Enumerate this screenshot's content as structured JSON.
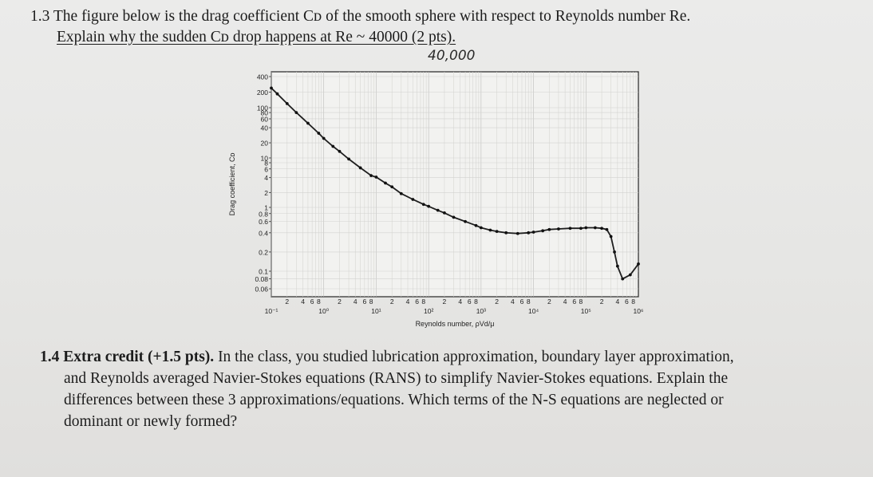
{
  "q13": {
    "line1": "1.3 The figure below is the drag coefficient Cᴅ of the smooth sphere with respect to Reynolds number Re.",
    "line2": "Explain why the sudden Cᴅ drop happens at Re ~ 40000 (2 pts).",
    "handwritten_note": "40,000"
  },
  "q14": {
    "line1": "1.4 Extra credit (+1.5 pts). In the class, you studied lubrication approximation, boundary layer approximation,",
    "line2": "and Reynolds averaged Navier-Stokes equations (RANS) to simplify Navier-Stokes equations. Explain the",
    "line3": "differences between these 3 approximations/equations. Which terms of the N-S equations are neglected or",
    "line4": "dominant or newly formed?"
  },
  "chart_data": {
    "type": "scatter",
    "xlabel": "Reynolds number, ρVd/μ",
    "ylabel": "Drag coefficient, Cᴅ",
    "x_scale": "log",
    "y_scale": "log",
    "xlim": [
      0.1,
      1000000
    ],
    "x_decade_labels": [
      "10⁻¹",
      "10⁰",
      "10¹",
      "10²",
      "10³",
      "10⁴",
      "10⁵",
      "10⁶"
    ],
    "x_minor_labels": [
      "2",
      "4",
      "6",
      "8"
    ],
    "y_tick_labels": [
      "400",
      "200",
      "100",
      "80",
      "60",
      "40",
      "20",
      "10",
      "8",
      "6",
      "4",
      "2",
      "1",
      "0.8",
      "0.6",
      "0.4",
      "0.2",
      "0.1",
      "0.08",
      "0.06"
    ],
    "grid": true,
    "series": [
      {
        "x": [
          0.1,
          0.13,
          0.2,
          0.3,
          0.5,
          0.8,
          1,
          1.5,
          2,
          3,
          5,
          8,
          10,
          15,
          20,
          30,
          50,
          80,
          100,
          150,
          200,
          300,
          500,
          800,
          1000,
          1500,
          2000,
          3000,
          5000,
          8000,
          10000,
          15000,
          20000,
          30000,
          50000,
          80000,
          100000,
          150000,
          200000,
          250000,
          300000,
          350000,
          400000,
          500000,
          700000,
          1000000
        ],
        "y": [
          240,
          185,
          120,
          80,
          49,
          31,
          24.5,
          17,
          13.5,
          9.5,
          6.3,
          4.4,
          4.1,
          3.1,
          2.6,
          1.9,
          1.45,
          1.15,
          1.05,
          0.9,
          0.82,
          0.7,
          0.6,
          0.52,
          0.48,
          0.44,
          0.42,
          0.4,
          0.39,
          0.4,
          0.41,
          0.43,
          0.45,
          0.46,
          0.47,
          0.47,
          0.48,
          0.48,
          0.47,
          0.45,
          0.35,
          0.2,
          0.12,
          0.08,
          0.09,
          0.13
        ]
      }
    ]
  }
}
